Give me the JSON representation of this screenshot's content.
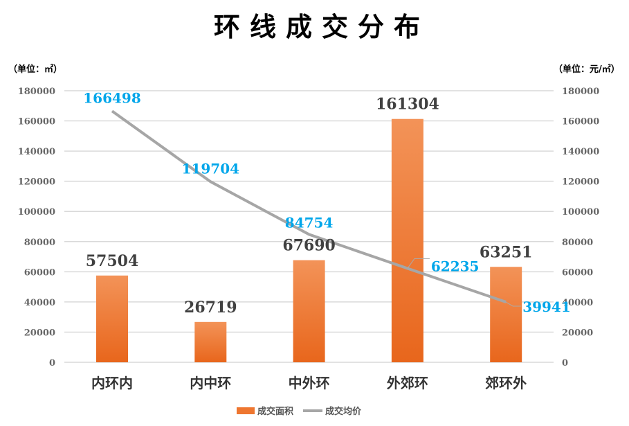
{
  "chart_data": {
    "type": "bar",
    "title": "环线成交分布",
    "ylabel_left": "（单位：㎡）",
    "ylabel_right": "（单位：元/㎡）",
    "categories": [
      "内环内",
      "内中环",
      "中外环",
      "外郊环",
      "郊环外"
    ],
    "ylim": [
      0,
      180000
    ],
    "yticks": [
      "0",
      "20000",
      "40000",
      "60000",
      "80000",
      "100000",
      "120000",
      "140000",
      "160000",
      "180000"
    ],
    "series": [
      {
        "name": "成交面积",
        "type": "bar",
        "axis": "left",
        "values": [
          57504,
          26719,
          67690,
          161304,
          63251
        ],
        "labels": [
          "57504",
          "26719",
          "67690",
          "161304",
          "63251"
        ]
      },
      {
        "name": "成交均价",
        "type": "line",
        "axis": "right",
        "values": [
          166498,
          119704,
          84754,
          62235,
          39941
        ],
        "labels": [
          "166498",
          "119704",
          "84754",
          "62235",
          "39941"
        ]
      }
    ],
    "colors": {
      "bar_top": "#f39358",
      "bar_bottom": "#e8661c",
      "line": "#a6a6a6",
      "line_label": "#00a6ea",
      "grid": "#d9d9d9"
    },
    "grid": true,
    "legend": "bottom"
  }
}
